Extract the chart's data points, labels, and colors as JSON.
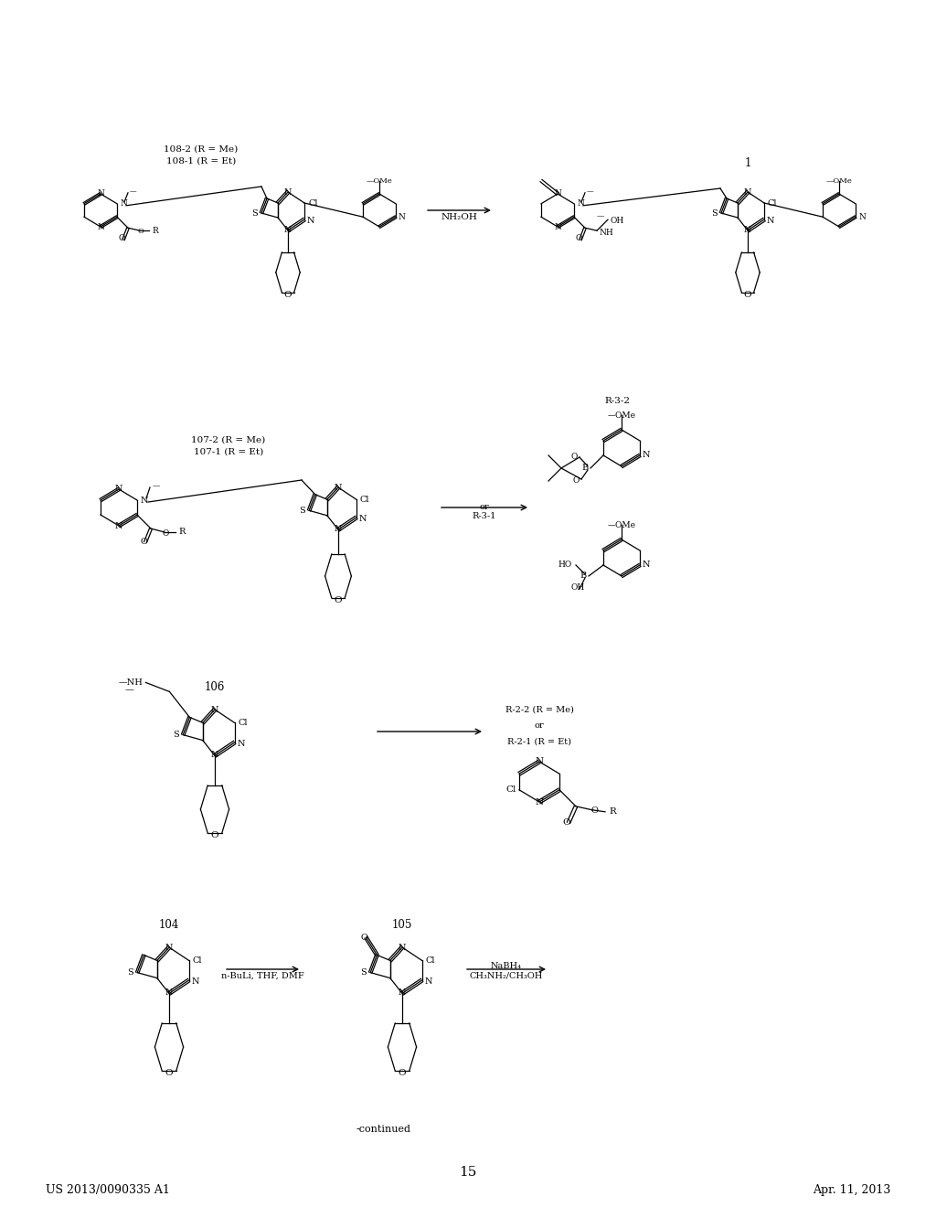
{
  "bg_color": "#ffffff",
  "page_width": 10.24,
  "page_height": 13.2,
  "header_left": "US 2013/0090335 A1",
  "header_right": "Apr. 11, 2013",
  "page_number": "15",
  "continued_text": "-continued"
}
